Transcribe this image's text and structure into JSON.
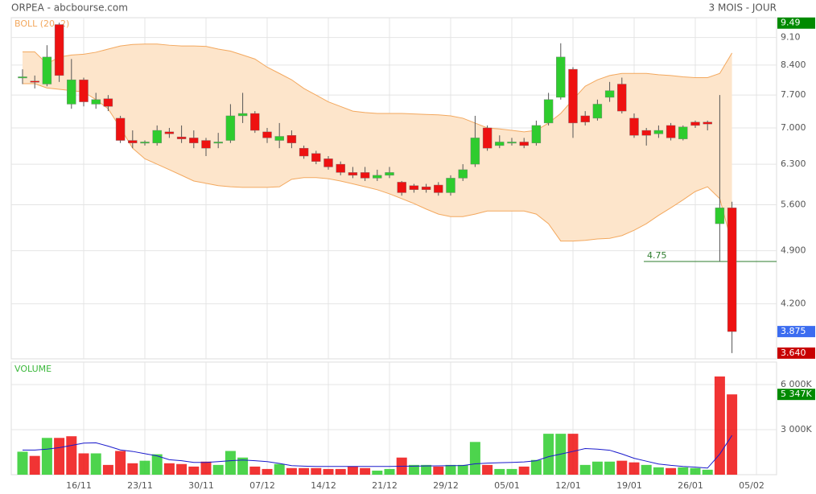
{
  "chart_data": {
    "type": "candlestick",
    "title": "ORPEA - abcbourse.com",
    "subtitle": "3 MOIS - JOUR",
    "log_scale": true,
    "grid": true,
    "up_color": "#2ecc2e",
    "down_color": "#ee1111",
    "categories": [
      null,
      null,
      null,
      null,
      null,
      "16/11",
      null,
      null,
      null,
      null,
      "23/11",
      null,
      null,
      null,
      null,
      "30/11",
      null,
      null,
      null,
      null,
      "07/12",
      null,
      null,
      null,
      null,
      "14/12",
      null,
      null,
      null,
      null,
      "21/12",
      null,
      null,
      null,
      null,
      "29/12",
      null,
      null,
      null,
      null,
      "05/01",
      null,
      null,
      null,
      null,
      "12/01",
      null,
      null,
      null,
      null,
      "19/01",
      null,
      null,
      null,
      null,
      "26/01",
      null,
      null,
      null,
      null,
      "05/02"
    ],
    "open": [
      8.1,
      8.02,
      7.95,
      9.45,
      7.5,
      8.05,
      7.5,
      7.62,
      7.2,
      6.75,
      6.7,
      6.7,
      6.92,
      6.82,
      6.8,
      6.75,
      6.7,
      6.75,
      7.25,
      7.3,
      6.92,
      6.75,
      6.85,
      6.6,
      6.5,
      6.4,
      6.3,
      6.15,
      6.15,
      6.05,
      6.1,
      5.98,
      5.92,
      5.9,
      5.93,
      5.8,
      6.05,
      6.3,
      7.0,
      6.65,
      6.7,
      6.72,
      6.7,
      7.1,
      7.65,
      8.3,
      7.25,
      7.2,
      7.65,
      7.95,
      7.2,
      6.95,
      6.88,
      7.05,
      6.78,
      7.12,
      7.12,
      5.3,
      5.55,
      null,
      null
    ],
    "high": [
      8.3,
      8.15,
      8.9,
      9.5,
      8.55,
      8.1,
      7.75,
      7.7,
      7.25,
      6.95,
      6.75,
      7.05,
      7.0,
      7.05,
      6.95,
      6.8,
      6.9,
      7.5,
      7.75,
      7.35,
      7.0,
      7.1,
      6.95,
      6.65,
      6.55,
      6.45,
      6.35,
      6.25,
      6.25,
      6.2,
      6.25,
      6.0,
      5.95,
      5.95,
      5.98,
      6.1,
      6.3,
      7.25,
      7.05,
      6.85,
      6.8,
      6.8,
      7.15,
      7.75,
      8.95,
      8.35,
      7.35,
      7.6,
      8.0,
      8.1,
      7.3,
      7.0,
      7.05,
      7.1,
      7.05,
      7.15,
      7.15,
      7.7,
      5.65,
      null,
      null
    ],
    "low": [
      7.95,
      7.85,
      7.9,
      8.0,
      7.4,
      7.45,
      7.4,
      7.35,
      6.7,
      6.6,
      6.65,
      6.65,
      6.8,
      6.7,
      6.6,
      6.45,
      6.6,
      6.7,
      7.1,
      6.9,
      6.7,
      6.6,
      6.6,
      6.4,
      6.3,
      6.2,
      6.1,
      6.05,
      6.0,
      6.0,
      6.05,
      5.75,
      5.8,
      5.8,
      5.75,
      5.75,
      6.0,
      6.25,
      6.55,
      6.6,
      6.65,
      6.6,
      6.65,
      7.05,
      7.6,
      6.8,
      7.05,
      7.15,
      7.55,
      7.3,
      6.8,
      6.65,
      6.8,
      6.75,
      6.75,
      7.0,
      6.95,
      4.75,
      3.64,
      null,
      null
    ],
    "close": [
      8.12,
      8.0,
      8.6,
      8.15,
      8.05,
      7.55,
      7.6,
      7.45,
      6.75,
      6.7,
      6.72,
      6.95,
      6.88,
      6.78,
      6.7,
      6.6,
      6.72,
      7.25,
      7.3,
      6.95,
      6.8,
      6.83,
      6.7,
      6.45,
      6.35,
      6.25,
      6.15,
      6.1,
      6.05,
      6.1,
      6.15,
      5.8,
      5.85,
      5.85,
      5.8,
      6.05,
      6.2,
      6.8,
      6.6,
      6.72,
      6.72,
      6.65,
      7.05,
      7.6,
      8.6,
      7.1,
      7.12,
      7.5,
      7.8,
      7.35,
      6.85,
      6.85,
      6.95,
      6.8,
      7.02,
      7.05,
      7.08,
      5.55,
      3.875,
      null,
      null
    ],
    "ylim": [
      3.58,
      9.64
    ],
    "yticks": [
      {
        "value": 4.2,
        "label": "4.200"
      },
      {
        "value": 4.9,
        "label": "4.900"
      },
      {
        "value": 5.6,
        "label": "5.600"
      },
      {
        "value": 6.3,
        "label": "6.300"
      },
      {
        "value": 7,
        "label": "7.000"
      },
      {
        "value": 7.7,
        "label": "7.700"
      },
      {
        "value": 8.4,
        "label": "8.400"
      },
      {
        "value": 9.1,
        "label": "9.10"
      }
    ],
    "bollinger": {
      "label": "BOLL (20, 2)",
      "color": "#f3a85e",
      "fill": "#fde5cb",
      "upper": [
        8.73,
        8.73,
        8.43,
        8.6,
        8.65,
        8.67,
        8.72,
        8.8,
        8.88,
        8.92,
        8.93,
        8.93,
        8.9,
        8.88,
        8.88,
        8.87,
        8.8,
        8.75,
        8.65,
        8.55,
        8.35,
        8.2,
        8.05,
        7.85,
        7.7,
        7.55,
        7.45,
        7.35,
        7.32,
        7.3,
        7.3,
        7.3,
        7.29,
        7.28,
        7.27,
        7.25,
        7.2,
        7.1,
        7.0,
        6.98,
        6.95,
        6.92,
        6.95,
        7.1,
        7.3,
        7.6,
        7.9,
        8.05,
        8.15,
        8.2,
        8.2,
        8.2,
        8.17,
        8.15,
        8.12,
        8.1,
        8.1,
        8.2,
        8.7,
        null,
        null
      ],
      "lower": [
        7.96,
        7.96,
        7.86,
        7.83,
        7.8,
        7.77,
        7.6,
        7.4,
        7.0,
        6.6,
        6.4,
        6.3,
        6.2,
        6.1,
        6.0,
        5.96,
        5.92,
        5.9,
        5.89,
        5.89,
        5.89,
        5.9,
        6.03,
        6.06,
        6.06,
        6.04,
        6.0,
        5.95,
        5.9,
        5.85,
        5.78,
        5.7,
        5.62,
        5.53,
        5.45,
        5.41,
        5.41,
        5.45,
        5.5,
        5.5,
        5.5,
        5.5,
        5.45,
        5.3,
        5.04,
        5.04,
        5.05,
        5.07,
        5.08,
        5.12,
        5.2,
        5.3,
        5.43,
        5.55,
        5.68,
        5.82,
        5.9,
        5.7,
        5.0,
        null,
        null
      ]
    },
    "level": {
      "value": 4.75,
      "color": "#2e7d2e"
    },
    "markers": [
      {
        "value": 9.49,
        "color": "#008a00"
      },
      {
        "value": 3.875,
        "color": "#3b6cf0"
      },
      {
        "value": 3.64,
        "label": "3.640",
        "color": "#c80000"
      }
    ],
    "volume": {
      "label": "VOLUME",
      "average_color": "#1a1acc",
      "values": [
        1530,
        1250,
        2450,
        2450,
        2560,
        1420,
        1420,
        650,
        1580,
        760,
        930,
        1360,
        760,
        710,
        540,
        870,
        650,
        1580,
        1140,
        540,
        380,
        710,
        440,
        440,
        440,
        380,
        380,
        540,
        440,
        270,
        380,
        1140,
        650,
        650,
        540,
        650,
        650,
        2180,
        650,
        380,
        380,
        540,
        980,
        2725,
        2725,
        2725,
        650,
        870,
        870,
        930,
        820,
        650,
        490,
        440,
        490,
        440,
        330,
        6540,
        5347,
        null,
        null
      ],
      "average": [
        1640,
        1640,
        1700,
        1800,
        1950,
        2100,
        2125,
        1900,
        1650,
        1550,
        1400,
        1250,
        1000,
        930,
        820,
        820,
        870,
        930,
        980,
        930,
        870,
        750,
        600,
        570,
        550,
        550,
        550,
        550,
        550,
        550,
        550,
        560,
        570,
        580,
        590,
        600,
        610,
        720,
        770,
        800,
        820,
        850,
        930,
        1200,
        1370,
        1550,
        1740,
        1700,
        1630,
        1380,
        1090,
        900,
        710,
        620,
        550,
        500,
        440,
        1370,
        2615,
        null,
        null
      ],
      "ylim": [
        0,
        7500
      ],
      "yticks": [
        {
          "value": 3000,
          "label": "3 000K"
        },
        {
          "value": 6000,
          "label": "6 000K"
        }
      ],
      "marker": {
        "value": 5347,
        "label": "5 347K",
        "color": "#008a00"
      }
    }
  }
}
